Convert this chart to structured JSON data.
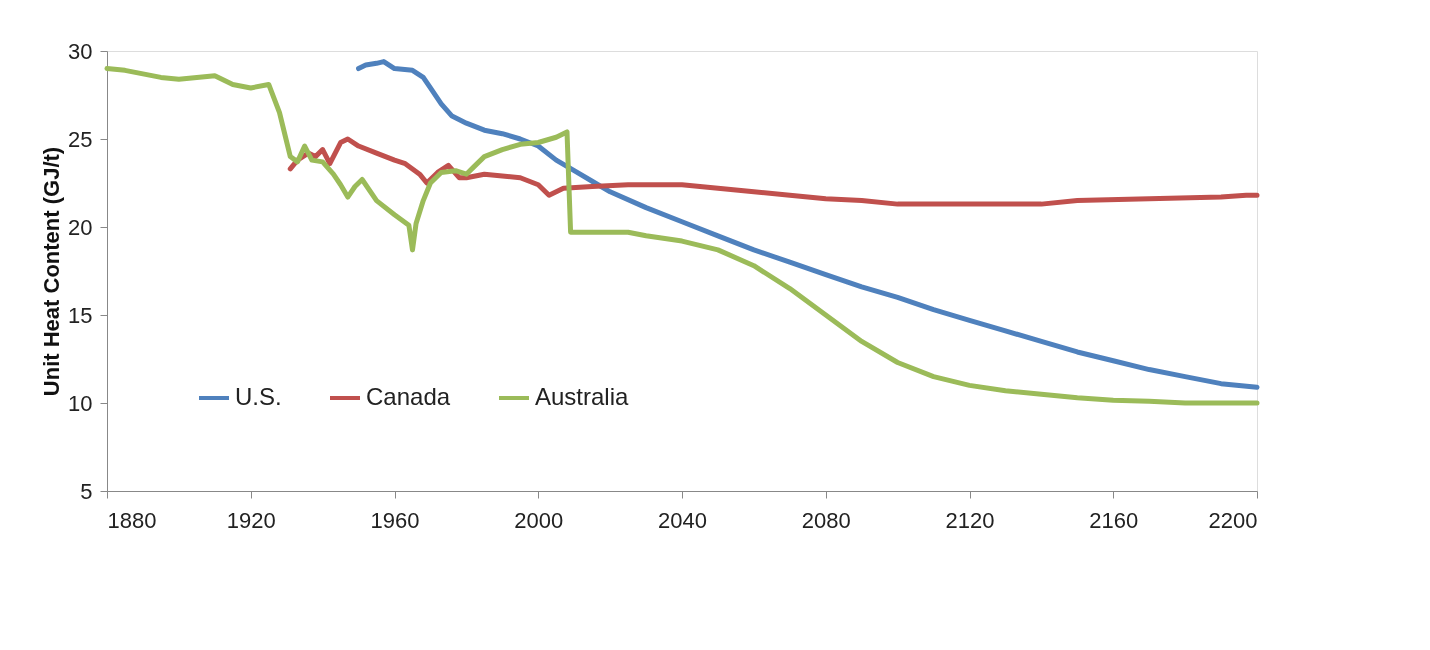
{
  "chart_data": {
    "type": "line",
    "ylabel": "Unit Heat Content (GJ/t)",
    "xlim": [
      1880,
      2200
    ],
    "xticks": [
      1880,
      1920,
      1960,
      2000,
      2040,
      2080,
      2120,
      2160,
      2200
    ],
    "ylim": [
      5,
      30
    ],
    "yticks": [
      5,
      10,
      15,
      20,
      25,
      30
    ],
    "grid": false,
    "legend": "bottom left",
    "marker": "none",
    "line_style": "solid",
    "series": [
      {
        "name": "U.S.",
        "color": "#4f81bd",
        "x": [
          1950,
          1952,
          1955,
          1957,
          1960,
          1965,
          1968,
          1970,
          1973,
          1976,
          1980,
          1985,
          1990,
          1995,
          2000,
          2005,
          2010,
          2015,
          2020,
          2030,
          2040,
          2050,
          2060,
          2070,
          2080,
          2090,
          2100,
          2110,
          2120,
          2130,
          2140,
          2150,
          2160,
          2170,
          2180,
          2190,
          2200
        ],
        "values": [
          29.0,
          29.2,
          29.3,
          29.4,
          29.0,
          28.9,
          28.5,
          27.9,
          27.0,
          26.3,
          25.9,
          25.5,
          25.3,
          25.0,
          24.6,
          23.8,
          23.2,
          22.6,
          22.0,
          21.1,
          20.3,
          19.5,
          18.7,
          18.0,
          17.3,
          16.6,
          16.0,
          15.3,
          14.7,
          14.1,
          13.5,
          12.9,
          12.4,
          11.9,
          11.5,
          11.1,
          10.9
        ]
      },
      {
        "name": "Canada",
        "color": "#c0504d",
        "x": [
          1931,
          1933,
          1936,
          1938,
          1940,
          1942,
          1945,
          1947,
          1950,
          1955,
          1960,
          1963,
          1967,
          1969,
          1972,
          1975,
          1978,
          1980,
          1985,
          1990,
          1995,
          2000,
          2003,
          2007,
          2015,
          2025,
          2040,
          2050,
          2060,
          2070,
          2080,
          2090,
          2100,
          2120,
          2140,
          2150,
          2170,
          2190,
          2197,
          2200
        ],
        "values": [
          23.3,
          23.8,
          24.2,
          24.0,
          24.4,
          23.6,
          24.8,
          25.0,
          24.6,
          24.2,
          23.8,
          23.6,
          23.0,
          22.5,
          23.1,
          23.5,
          22.8,
          22.8,
          23.0,
          22.9,
          22.8,
          22.4,
          21.8,
          22.2,
          22.3,
          22.4,
          22.4,
          22.2,
          22.0,
          21.8,
          21.6,
          21.5,
          21.3,
          21.3,
          21.3,
          21.5,
          21.6,
          21.7,
          21.8,
          21.8
        ]
      },
      {
        "name": "Australia",
        "color": "#9bbb59",
        "x": [
          1880,
          1885,
          1890,
          1895,
          1900,
          1905,
          1910,
          1915,
          1920,
          1925,
          1928,
          1931,
          1933,
          1935,
          1937,
          1940,
          1943,
          1945,
          1947,
          1949,
          1951,
          1955,
          1960,
          1964,
          1965,
          1966,
          1968,
          1970,
          1973,
          1977,
          1980,
          1982,
          1985,
          1990,
          1995,
          2000,
          2005,
          2008,
          2009,
          2015,
          2025,
          2030,
          2040,
          2050,
          2060,
          2070,
          2080,
          2090,
          2100,
          2110,
          2120,
          2130,
          2140,
          2150,
          2160,
          2170,
          2180,
          2200
        ],
        "values": [
          29.0,
          28.9,
          28.7,
          28.5,
          28.4,
          28.5,
          28.6,
          28.1,
          27.9,
          28.1,
          26.5,
          24.0,
          23.7,
          24.6,
          23.8,
          23.7,
          23.0,
          22.4,
          21.7,
          22.3,
          22.7,
          21.5,
          20.7,
          20.1,
          18.7,
          20.2,
          21.5,
          22.5,
          23.1,
          23.2,
          23.0,
          23.4,
          24.0,
          24.4,
          24.7,
          24.8,
          25.1,
          25.4,
          19.7,
          19.7,
          19.7,
          19.5,
          19.2,
          18.7,
          17.8,
          16.5,
          15.0,
          13.5,
          12.3,
          11.5,
          11.0,
          10.7,
          10.5,
          10.3,
          10.15,
          10.1,
          10.0,
          10.0
        ]
      }
    ]
  }
}
